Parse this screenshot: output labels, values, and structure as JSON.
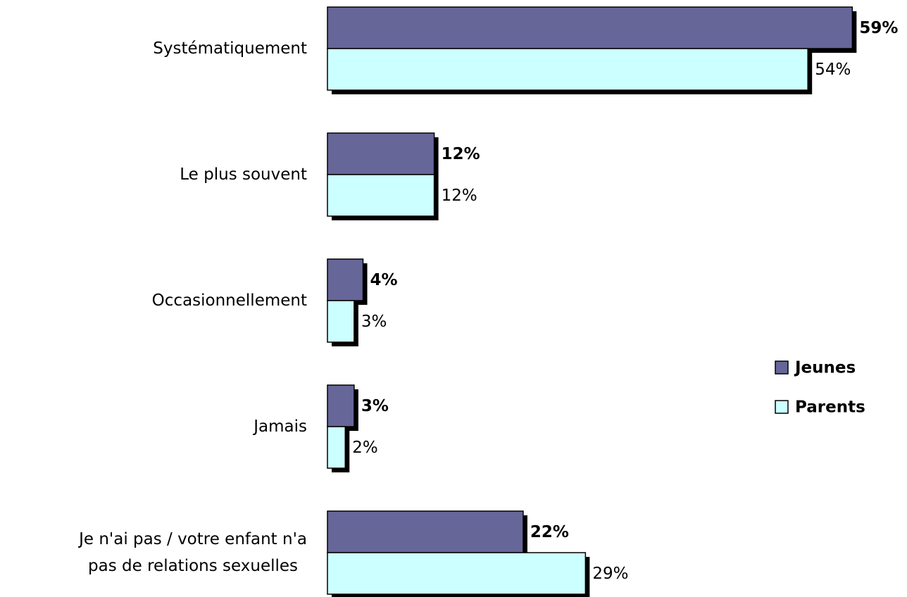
{
  "chart_data": {
    "type": "hbar",
    "categories": [
      "Systématiquement",
      "Le plus souvent",
      "Occasionnellement",
      "Jamais",
      "Je n'ai pas / votre enfant n'a\npas de relations sexuelles"
    ],
    "series": [
      {
        "name": "Jeunes",
        "color": "#666699",
        "values": [
          59,
          12,
          4,
          3,
          22
        ],
        "value_labels": [
          "59%",
          "12%",
          "4%",
          "3%",
          "22%"
        ]
      },
      {
        "name": "Parents",
        "color": "#ccffff",
        "values": [
          54,
          12,
          3,
          2,
          29
        ],
        "value_labels": [
          "54%",
          "12%",
          "3%",
          "2%",
          "29%"
        ]
      }
    ],
    "xlim": [
      0,
      60
    ],
    "legend": "right"
  }
}
